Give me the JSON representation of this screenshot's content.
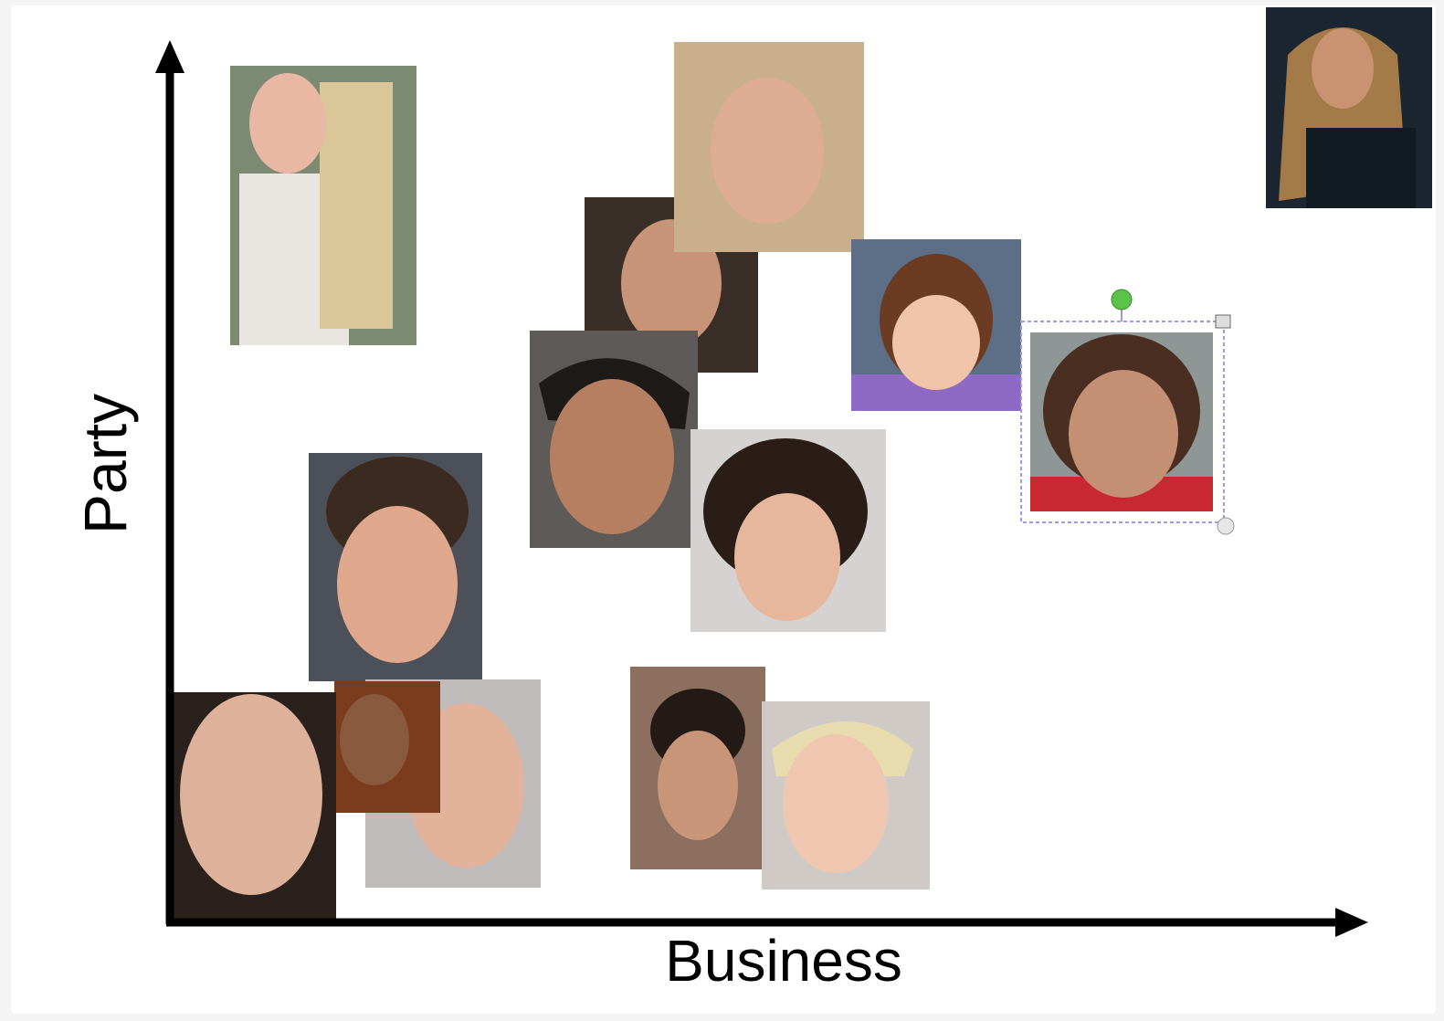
{
  "axes": {
    "y_label": "Party",
    "x_label": "Business"
  }
}
